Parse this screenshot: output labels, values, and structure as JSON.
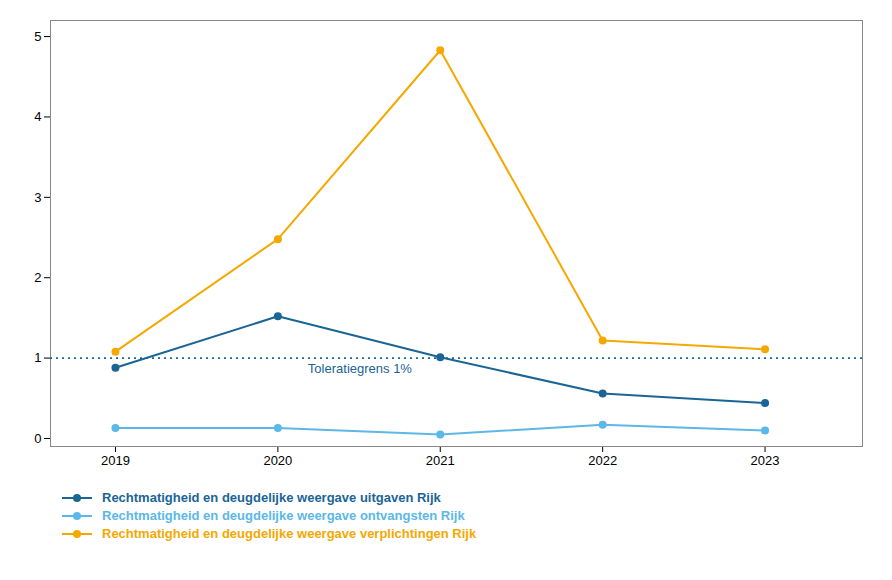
{
  "chart_data": {
    "type": "line",
    "x": [
      2019,
      2020,
      2021,
      2022,
      2023
    ],
    "series": [
      {
        "name": "Rechtmatigheid en deugdelijke weergave uitgaven Rijk",
        "color": "#1A6496",
        "values": [
          0.88,
          1.52,
          1.01,
          0.56,
          0.44
        ]
      },
      {
        "name": "Rechtmatigheid en deugdelijke weergave ontvangsten Rijk",
        "color": "#5BB8E8",
        "values": [
          0.13,
          0.13,
          0.05,
          0.17,
          0.1
        ]
      },
      {
        "name": "Rechtmatigheid en deugdelijke weergave verplichtingen Rijk",
        "color": "#F5A800",
        "values": [
          1.08,
          2.48,
          4.83,
          1.22,
          1.11
        ]
      }
    ],
    "xlim": [
      2018.6,
      2023.6
    ],
    "xticks": [
      2019,
      2020,
      2021,
      2022,
      2023
    ],
    "ylim": [
      -0.1,
      5.2
    ],
    "yticks": [
      0,
      1,
      2,
      3,
      4,
      5
    ],
    "grid": false,
    "legend": "bottom",
    "marker": "circle",
    "annotations": [
      {
        "type": "hline",
        "y": 1.0,
        "text": "Toleratiegrens 1%",
        "color": "#1A6496",
        "line_style": "dotted"
      }
    ]
  }
}
